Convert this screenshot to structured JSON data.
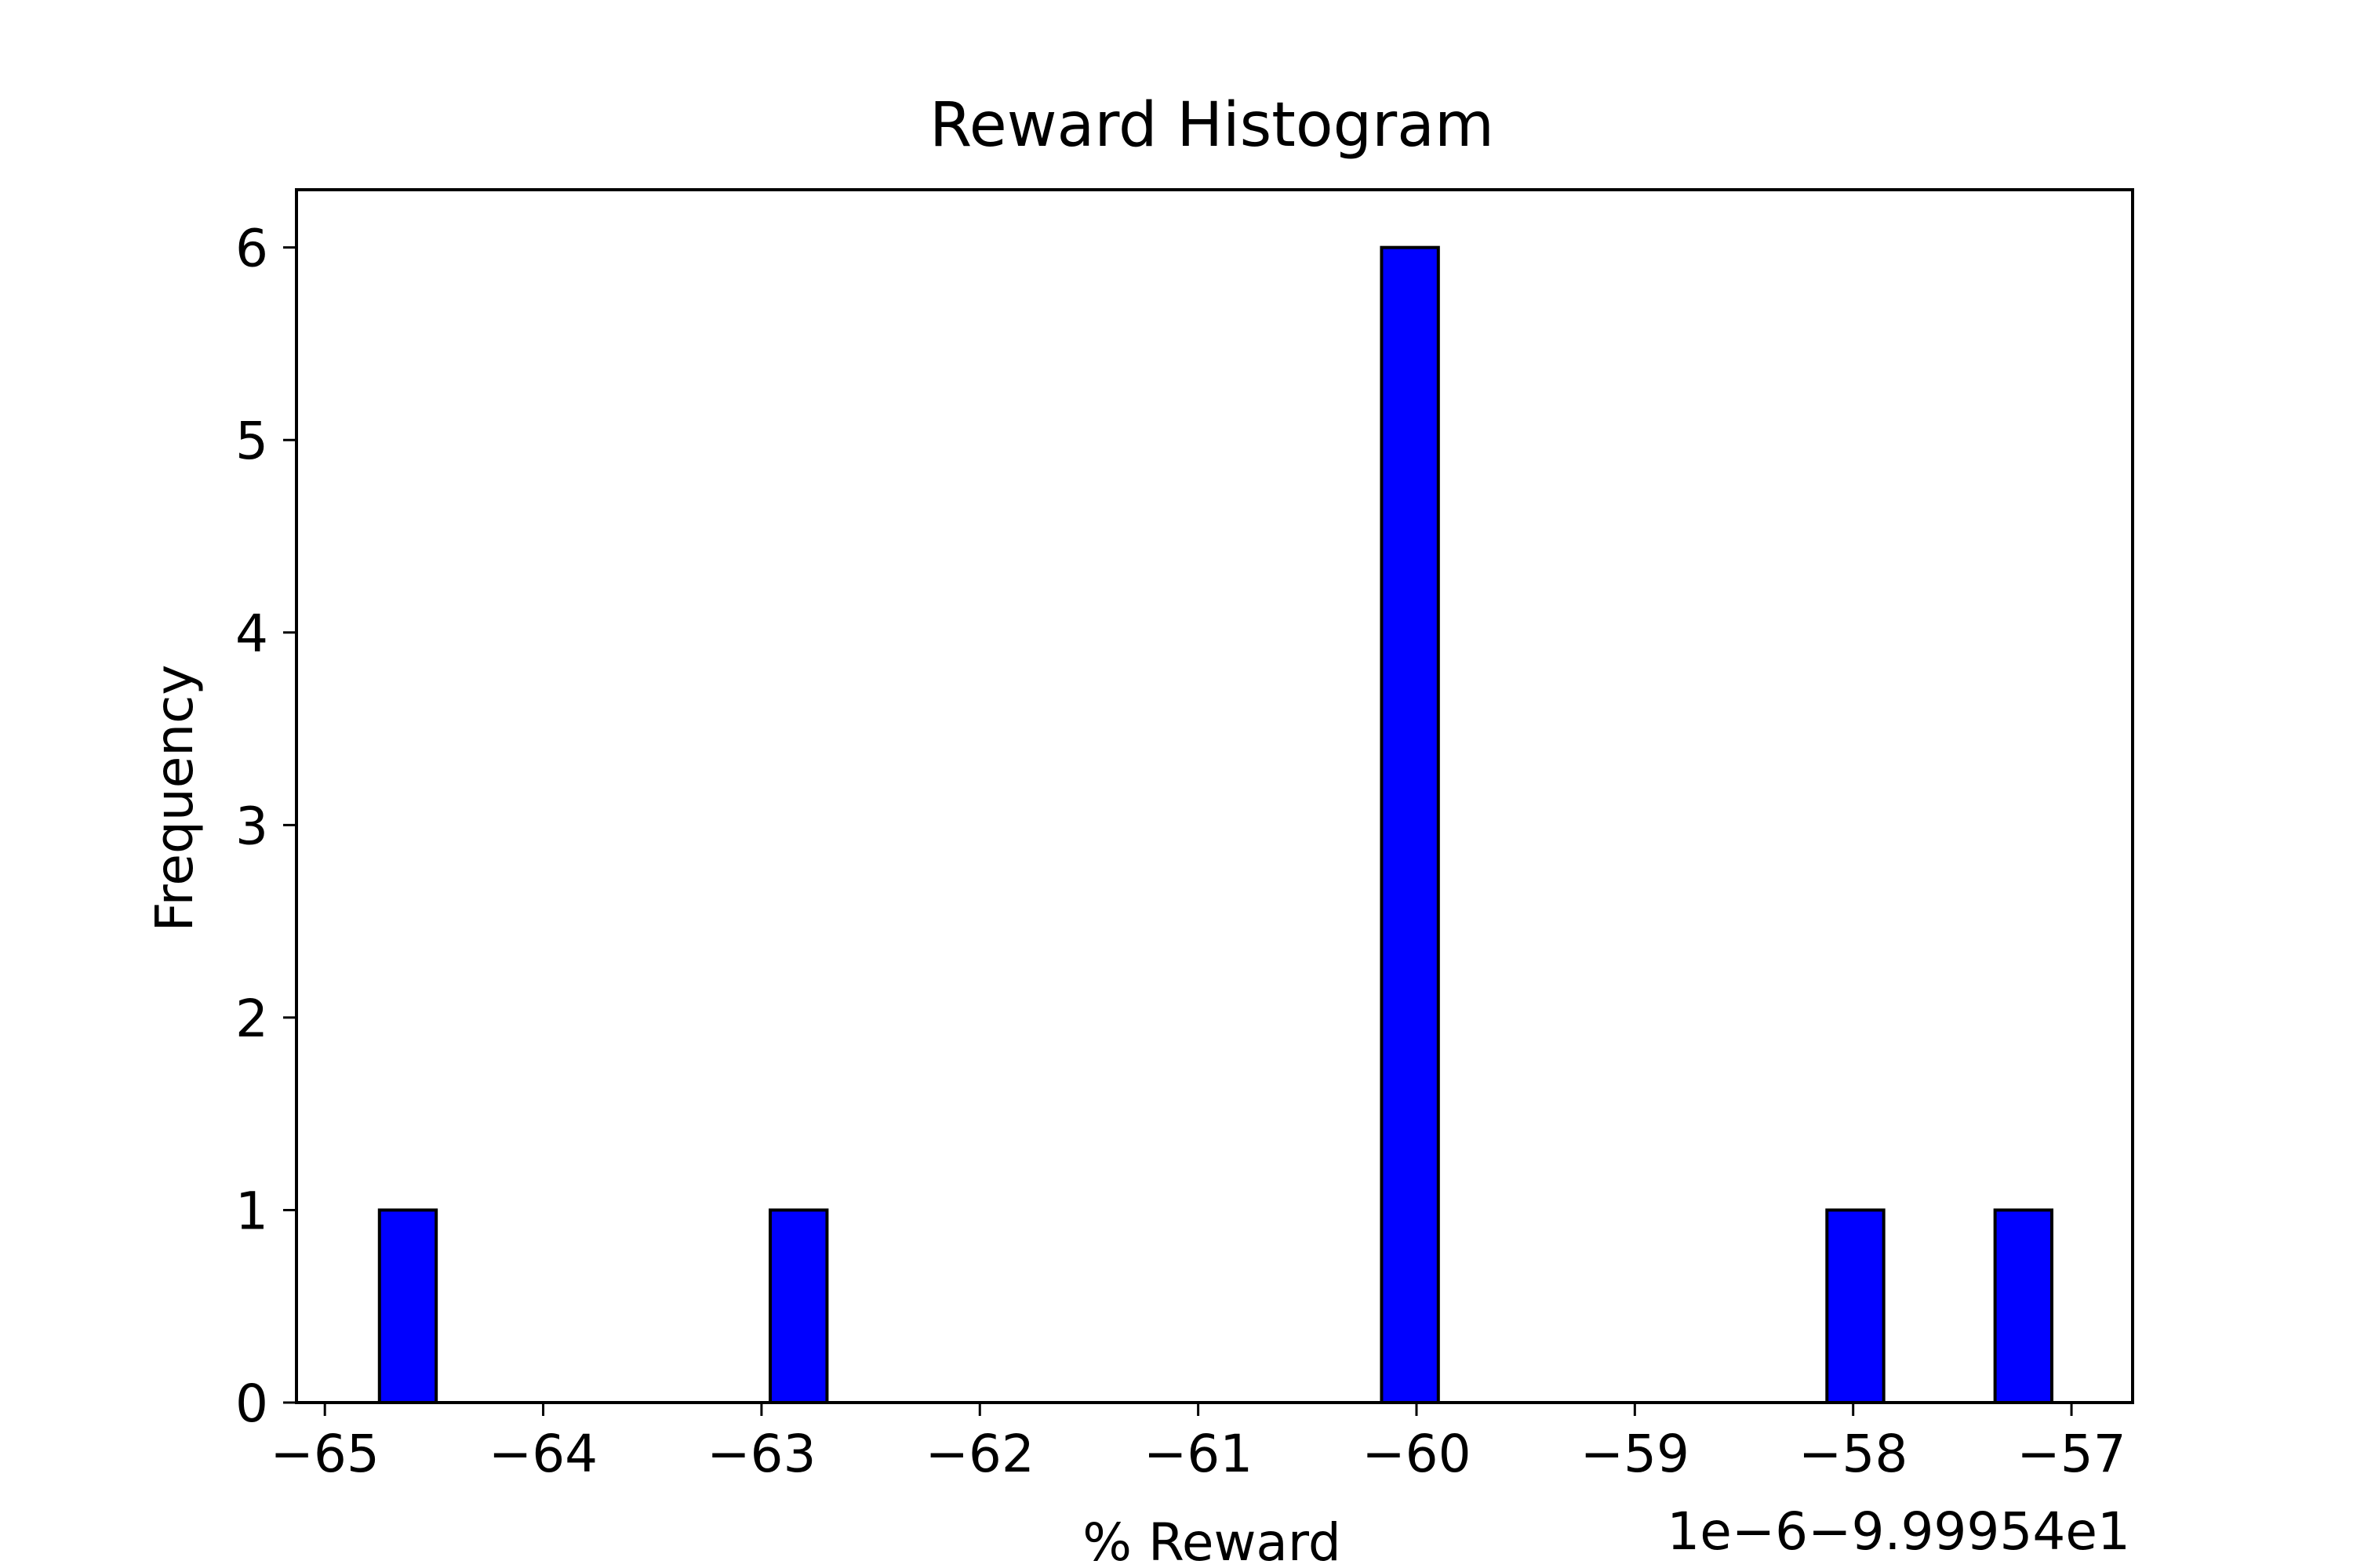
{
  "chart_data": {
    "type": "bar",
    "title": "Reward Histogram",
    "xlabel": "% Reward",
    "ylabel": "Frequency",
    "axis_offset_text": "1e−6−9.99954e1",
    "x_ticks": [
      "−65",
      "−64",
      "−63",
      "−62",
      "−61",
      "−60",
      "−59",
      "−58",
      "−57"
    ],
    "x_tick_values": [
      -65,
      -64,
      -63,
      -62,
      -61,
      -60,
      -59,
      -58,
      -57
    ],
    "y_ticks": [
      "0",
      "1",
      "2",
      "3",
      "4",
      "5",
      "6"
    ],
    "y_tick_values": [
      0,
      1,
      2,
      3,
      4,
      5,
      6
    ],
    "xlim": [
      -65.13,
      -56.72
    ],
    "ylim": [
      0,
      6.3
    ],
    "bars": [
      {
        "x0": -64.75,
        "x1": -64.49,
        "value": 1
      },
      {
        "x0": -62.96,
        "x1": -62.7,
        "value": 1
      },
      {
        "x0": -60.16,
        "x1": -59.9,
        "value": 6
      },
      {
        "x0": -58.12,
        "x1": -57.86,
        "value": 1
      },
      {
        "x0": -57.35,
        "x1": -57.09,
        "value": 1
      }
    ],
    "bar_color": "#0000ff",
    "bar_edge_color": "#000000",
    "grid": false,
    "legend": "none"
  }
}
